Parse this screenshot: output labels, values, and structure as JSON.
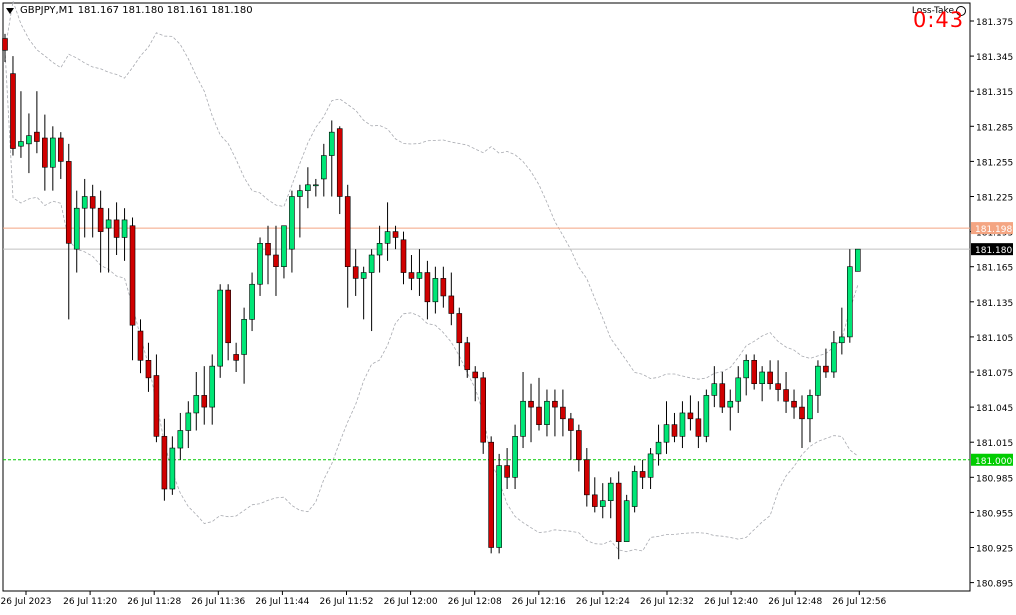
{
  "header": {
    "symbol": "GBPJPY,M1",
    "ohlc": "181.167 181.180 181.161 181.180"
  },
  "indicator": {
    "label": "Loss-Take"
  },
  "timer": {
    "value": "0:43"
  },
  "colors": {
    "bull": "#00e676",
    "bear": "#d00000",
    "price_line": "#c0c0c0",
    "take_line": "#f4a582",
    "loss_line": "#00cc00",
    "bands": "#a8aab0"
  },
  "chart_data": {
    "type": "candlestick",
    "symbol": "GBPJPY",
    "timeframe": "M1",
    "ylim": [
      180.88,
      181.39
    ],
    "yticks": [
      "181.375",
      "181.345",
      "181.315",
      "181.285",
      "181.255",
      "181.225",
      "181.195",
      "181.165",
      "181.135",
      "181.105",
      "181.075",
      "181.045",
      "181.015",
      "180.985",
      "180.955",
      "180.925",
      "180.895"
    ],
    "xticks": [
      "26 Jul 2023",
      "26 Jul 11:20",
      "26 Jul 11:28",
      "26 Jul 11:36",
      "26 Jul 11:44",
      "26 Jul 11:52",
      "26 Jul 12:00",
      "26 Jul 12:08",
      "26 Jul 12:16",
      "26 Jul 12:24",
      "26 Jul 12:32",
      "26 Jul 12:40",
      "26 Jul 12:48",
      "26 Jul 12:56"
    ],
    "hlines": [
      {
        "value": 181.198,
        "label": "181.198",
        "kind": "take"
      },
      {
        "value": 181.18,
        "label": "181.180",
        "kind": "price"
      },
      {
        "value": 181.0,
        "label": "181.000",
        "kind": "loss"
      }
    ],
    "candles": [
      [
        181.36,
        181.364,
        181.34,
        181.35
      ],
      [
        181.33,
        181.345,
        181.26,
        181.266
      ],
      [
        181.268,
        181.315,
        181.258,
        181.272
      ],
      [
        181.27,
        181.296,
        181.245,
        181.277
      ],
      [
        181.28,
        181.315,
        181.262,
        181.272
      ],
      [
        181.275,
        181.295,
        181.23,
        181.25
      ],
      [
        181.25,
        181.285,
        181.23,
        181.275
      ],
      [
        181.275,
        181.28,
        181.24,
        181.255
      ],
      [
        181.255,
        181.27,
        181.12,
        181.185
      ],
      [
        181.18,
        181.23,
        181.16,
        181.215
      ],
      [
        181.215,
        181.24,
        181.19,
        181.225
      ],
      [
        181.225,
        181.235,
        181.19,
        181.215
      ],
      [
        181.215,
        181.23,
        181.16,
        181.195
      ],
      [
        181.198,
        181.215,
        181.16,
        181.205
      ],
      [
        181.205,
        181.22,
        181.175,
        181.19
      ],
      [
        181.19,
        181.215,
        181.17,
        181.205
      ],
      [
        181.2,
        181.207,
        181.085,
        181.115
      ],
      [
        181.11,
        181.12,
        181.074,
        181.085
      ],
      [
        181.085,
        181.1,
        181.058,
        181.07
      ],
      [
        181.072,
        181.09,
        181.015,
        181.02
      ],
      [
        181.02,
        181.035,
        180.965,
        180.975
      ],
      [
        180.975,
        181.02,
        180.97,
        181.01
      ],
      [
        181.01,
        181.04,
        181.0,
        181.025
      ],
      [
        181.025,
        181.05,
        181.01,
        181.04
      ],
      [
        181.04,
        181.075,
        181.025,
        181.055
      ],
      [
        181.055,
        181.08,
        181.03,
        181.045
      ],
      [
        181.045,
        181.09,
        181.03,
        181.08
      ],
      [
        181.08,
        181.15,
        181.07,
        181.145
      ],
      [
        181.145,
        181.15,
        181.085,
        181.1
      ],
      [
        181.09,
        181.1,
        181.075,
        181.085
      ],
      [
        181.09,
        181.13,
        181.065,
        181.12
      ],
      [
        181.12,
        181.16,
        181.11,
        181.15
      ],
      [
        181.15,
        181.19,
        181.14,
        181.185
      ],
      [
        181.185,
        181.2,
        181.15,
        181.175
      ],
      [
        181.175,
        181.2,
        181.14,
        181.165
      ],
      [
        181.165,
        181.2,
        181.155,
        181.2
      ],
      [
        181.18,
        181.23,
        181.16,
        181.225
      ],
      [
        181.225,
        181.235,
        181.19,
        181.23
      ],
      [
        181.23,
        181.25,
        181.215,
        181.235
      ],
      [
        181.235,
        181.24,
        181.225,
        181.235
      ],
      [
        181.24,
        181.27,
        181.225,
        181.26
      ],
      [
        181.26,
        181.29,
        181.225,
        181.28
      ],
      [
        181.283,
        181.285,
        181.21,
        181.225
      ],
      [
        181.225,
        181.235,
        181.13,
        181.165
      ],
      [
        181.165,
        181.18,
        181.14,
        181.155
      ],
      [
        181.155,
        181.165,
        181.12,
        181.16
      ],
      [
        181.16,
        181.18,
        181.11,
        181.175
      ],
      [
        181.175,
        181.2,
        181.16,
        181.185
      ],
      [
        181.185,
        181.22,
        181.17,
        181.195
      ],
      [
        181.195,
        181.2,
        181.18,
        181.19
      ],
      [
        181.188,
        181.195,
        181.15,
        181.16
      ],
      [
        181.16,
        181.175,
        181.145,
        181.155
      ],
      [
        181.155,
        181.18,
        181.14,
        181.16
      ],
      [
        181.16,
        181.17,
        181.12,
        181.135
      ],
      [
        181.135,
        181.165,
        181.125,
        181.155
      ],
      [
        181.155,
        181.165,
        181.13,
        181.14
      ],
      [
        181.14,
        181.16,
        181.115,
        181.125
      ],
      [
        181.125,
        181.13,
        181.08,
        181.1
      ],
      [
        181.1,
        181.105,
        181.07,
        181.077
      ],
      [
        181.075,
        181.08,
        181.05,
        181.07
      ],
      [
        181.07,
        181.075,
        181.005,
        181.015
      ],
      [
        181.015,
        181.02,
        180.92,
        180.925
      ],
      [
        180.925,
        181.005,
        180.92,
        180.995
      ],
      [
        180.995,
        181.01,
        180.975,
        180.985
      ],
      [
        180.985,
        181.03,
        180.975,
        181.02
      ],
      [
        181.02,
        181.075,
        181.01,
        181.05
      ],
      [
        181.05,
        181.065,
        181.015,
        181.045
      ],
      [
        181.045,
        181.07,
        181.025,
        181.03
      ],
      [
        181.03,
        181.06,
        181.02,
        181.05
      ],
      [
        181.05,
        181.06,
        181.02,
        181.045
      ],
      [
        181.045,
        181.06,
        181.02,
        181.035
      ],
      [
        181.035,
        181.04,
        181.0,
        181.025
      ],
      [
        181.025,
        181.03,
        180.99,
        181.0
      ],
      [
        181.0,
        181.01,
        180.96,
        180.97
      ],
      [
        180.97,
        180.985,
        180.955,
        180.96
      ],
      [
        180.96,
        180.98,
        180.95,
        180.965
      ],
      [
        180.965,
        180.985,
        180.95,
        180.98
      ],
      [
        180.98,
        180.99,
        180.915,
        180.93
      ],
      [
        180.93,
        180.97,
        180.93,
        180.965
      ],
      [
        180.96,
        180.995,
        180.955,
        180.99
      ],
      [
        180.99,
        181.0,
        180.975,
        180.985
      ],
      [
        180.985,
        181.01,
        180.975,
        181.005
      ],
      [
        181.005,
        181.03,
        180.995,
        181.015
      ],
      [
        181.015,
        181.05,
        181.005,
        181.03
      ],
      [
        181.03,
        181.04,
        181.015,
        181.02
      ],
      [
        181.02,
        181.05,
        181.01,
        181.04
      ],
      [
        181.04,
        181.055,
        181.025,
        181.035
      ],
      [
        181.035,
        181.05,
        181.01,
        181.02
      ],
      [
        181.02,
        181.06,
        181.015,
        181.055
      ],
      [
        181.055,
        181.08,
        181.045,
        181.065
      ],
      [
        181.065,
        181.075,
        181.04,
        181.045
      ],
      [
        181.045,
        181.06,
        181.025,
        181.05
      ],
      [
        181.05,
        181.08,
        181.04,
        181.07
      ],
      [
        181.07,
        181.09,
        181.055,
        181.085
      ],
      [
        181.085,
        181.09,
        181.06,
        181.065
      ],
      [
        181.065,
        181.08,
        181.05,
        181.075
      ],
      [
        181.075,
        181.085,
        181.06,
        181.065
      ],
      [
        181.065,
        181.085,
        181.05,
        181.06
      ],
      [
        181.06,
        181.075,
        181.04,
        181.05
      ],
      [
        181.05,
        181.06,
        181.035,
        181.045
      ],
      [
        181.045,
        181.055,
        181.01,
        181.035
      ],
      [
        181.035,
        181.06,
        181.015,
        181.055
      ],
      [
        181.055,
        181.085,
        181.04,
        181.08
      ],
      [
        181.08,
        181.095,
        181.07,
        181.075
      ],
      [
        181.075,
        181.11,
        181.07,
        181.1
      ],
      [
        181.1,
        181.13,
        181.09,
        181.105
      ],
      [
        181.105,
        181.18,
        181.1,
        181.165
      ],
      [
        181.161,
        181.18,
        181.161,
        181.18
      ]
    ]
  }
}
